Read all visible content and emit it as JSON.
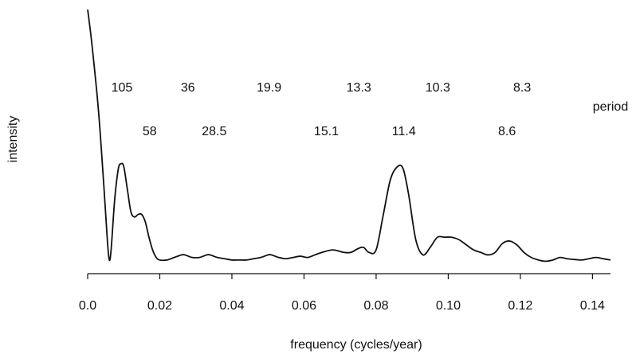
{
  "chart_data": {
    "type": "line",
    "title": "",
    "xlabel": "frequency (cycles/year)",
    "ylabel": "intensity",
    "xlim": [
      0.0,
      0.145
    ],
    "ylim": [
      0,
      1
    ],
    "grid": false,
    "x_ticks": [
      0.0,
      0.02,
      0.04,
      0.06,
      0.08,
      0.1,
      0.12,
      0.14
    ],
    "x_tick_labels": [
      "0.0",
      "0.02",
      "0.04",
      "0.06",
      "0.08",
      "0.10",
      "0.12",
      "0.14"
    ],
    "period_axis_label": "period",
    "period_labels": [
      {
        "text": "105",
        "frequency": 0.0095,
        "row": 1
      },
      {
        "text": "58",
        "frequency": 0.0172,
        "row": 2
      },
      {
        "text": "36",
        "frequency": 0.0278,
        "row": 1
      },
      {
        "text": "28.5",
        "frequency": 0.0351,
        "row": 2
      },
      {
        "text": "19.9",
        "frequency": 0.0503,
        "row": 1
      },
      {
        "text": "15.1",
        "frequency": 0.0662,
        "row": 2
      },
      {
        "text": "13.3",
        "frequency": 0.0752,
        "row": 1
      },
      {
        "text": "11.4",
        "frequency": 0.0877,
        "row": 2
      },
      {
        "text": "10.3",
        "frequency": 0.0971,
        "row": 1
      },
      {
        "text": "8.6",
        "frequency": 0.1163,
        "row": 2
      },
      {
        "text": "8.3",
        "frequency": 0.1205,
        "row": 1
      }
    ],
    "series": [
      {
        "x": [
          0.0,
          0.0012,
          0.003,
          0.0045,
          0.0055,
          0.006,
          0.0065,
          0.0075,
          0.0085,
          0.0092,
          0.01,
          0.011,
          0.012,
          0.013,
          0.014,
          0.015,
          0.016,
          0.017,
          0.018,
          0.019,
          0.02,
          0.022,
          0.024,
          0.026,
          0.027,
          0.029,
          0.031,
          0.033,
          0.034,
          0.036,
          0.038,
          0.04,
          0.042,
          0.044,
          0.046,
          0.048,
          0.05,
          0.051,
          0.053,
          0.055,
          0.057,
          0.059,
          0.061,
          0.063,
          0.065,
          0.068,
          0.071,
          0.073,
          0.075,
          0.0765,
          0.078,
          0.08,
          0.082,
          0.084,
          0.086,
          0.0875,
          0.089,
          0.091,
          0.093,
          0.095,
          0.097,
          0.099,
          0.101,
          0.103,
          0.105,
          0.107,
          0.109,
          0.111,
          0.113,
          0.115,
          0.117,
          0.119,
          0.121,
          0.123,
          0.125,
          0.127,
          0.129,
          0.131,
          0.133,
          0.135,
          0.137,
          0.139,
          0.141,
          0.143,
          0.145
        ],
        "y": [
          1.0,
          0.86,
          0.6,
          0.3,
          0.08,
          0.01,
          0.05,
          0.25,
          0.37,
          0.39,
          0.38,
          0.29,
          0.2,
          0.18,
          0.19,
          0.19,
          0.16,
          0.1,
          0.05,
          0.02,
          0.01,
          0.01,
          0.02,
          0.03,
          0.03,
          0.02,
          0.02,
          0.03,
          0.03,
          0.02,
          0.015,
          0.01,
          0.01,
          0.01,
          0.015,
          0.02,
          0.03,
          0.03,
          0.02,
          0.015,
          0.02,
          0.025,
          0.02,
          0.03,
          0.04,
          0.05,
          0.04,
          0.04,
          0.055,
          0.06,
          0.04,
          0.05,
          0.19,
          0.33,
          0.38,
          0.37,
          0.27,
          0.09,
          0.03,
          0.06,
          0.1,
          0.1,
          0.1,
          0.09,
          0.07,
          0.05,
          0.04,
          0.03,
          0.04,
          0.075,
          0.085,
          0.07,
          0.04,
          0.02,
          0.01,
          0.005,
          0.01,
          0.02,
          0.015,
          0.012,
          0.01,
          0.015,
          0.02,
          0.015,
          0.01
        ]
      }
    ]
  }
}
